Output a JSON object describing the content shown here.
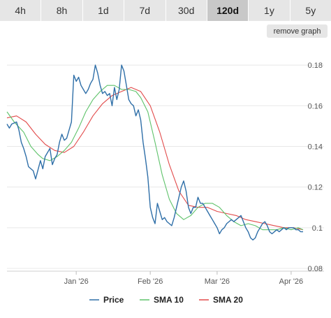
{
  "toolbar": {
    "tabs": [
      {
        "label": "4h"
      },
      {
        "label": "8h"
      },
      {
        "label": "1d"
      },
      {
        "label": "7d"
      },
      {
        "label": "30d"
      },
      {
        "label": "120d",
        "active": true
      },
      {
        "label": "1y"
      },
      {
        "label": "5y"
      }
    ],
    "remove_graph_label": "remove graph"
  },
  "colors": {
    "price": "#2f6fa8",
    "sma10": "#5ec26a",
    "sma20": "#e24a4a"
  },
  "chart_data": {
    "type": "line",
    "ylim": [
      0.08,
      0.19
    ],
    "yticks": [
      0.08,
      0.1,
      0.12,
      0.14,
      0.16,
      0.18
    ],
    "ytick_labels": [
      "0.08",
      "0.1",
      "0.12",
      "0.14",
      "0.16",
      "0.18"
    ],
    "xlim": [
      "2025-12-03",
      "2026-04-06"
    ],
    "xticks": [
      "2026-01-01",
      "2026-02-01",
      "2026-03-01",
      "2026-04-01"
    ],
    "xtick_labels": [
      "Jan '26",
      "Feb '26",
      "Mar '26",
      "Apr '26"
    ],
    "grid": true,
    "legend_position": "bottom",
    "series": [
      {
        "name": "Price",
        "x": [
          "2025-12-03",
          "2025-12-04",
          "2025-12-05",
          "2025-12-07",
          "2025-12-08",
          "2025-12-09",
          "2025-12-10",
          "2025-12-11",
          "2025-12-12",
          "2025-12-14",
          "2025-12-15",
          "2025-12-17",
          "2025-12-18",
          "2025-12-19",
          "2025-12-21",
          "2025-12-22",
          "2025-12-23",
          "2025-12-24",
          "2025-12-25",
          "2025-12-26",
          "2025-12-27",
          "2025-12-28",
          "2025-12-29",
          "2025-12-30",
          "2025-12-31",
          "2026-01-01",
          "2026-01-02",
          "2026-01-03",
          "2026-01-04",
          "2026-01-05",
          "2026-01-06",
          "2026-01-07",
          "2026-01-08",
          "2026-01-09",
          "2026-01-10",
          "2026-01-11",
          "2026-01-12",
          "2026-01-13",
          "2026-01-14",
          "2026-01-15",
          "2026-01-16",
          "2026-01-17",
          "2026-01-18",
          "2026-01-19",
          "2026-01-20",
          "2026-01-21",
          "2026-01-22",
          "2026-01-23",
          "2026-01-24",
          "2026-01-25",
          "2026-01-26",
          "2026-01-27",
          "2026-01-28",
          "2026-01-29",
          "2026-01-30",
          "2026-01-31",
          "2026-02-01",
          "2026-02-02",
          "2026-02-03",
          "2026-02-04",
          "2026-02-05",
          "2026-02-06",
          "2026-02-07",
          "2026-02-08",
          "2026-02-09",
          "2026-02-10",
          "2026-02-11",
          "2026-02-12",
          "2026-02-13",
          "2026-02-14",
          "2026-02-15",
          "2026-02-16",
          "2026-02-17",
          "2026-02-18",
          "2026-02-19",
          "2026-02-20",
          "2026-02-21",
          "2026-02-22",
          "2026-02-23",
          "2026-02-24",
          "2026-02-25",
          "2026-02-26",
          "2026-02-27",
          "2026-02-28",
          "2026-03-01",
          "2026-03-02",
          "2026-03-03",
          "2026-03-04",
          "2026-03-05",
          "2026-03-06",
          "2026-03-07",
          "2026-03-08",
          "2026-03-09",
          "2026-03-10",
          "2026-03-11",
          "2026-03-12",
          "2026-03-13",
          "2026-03-14",
          "2026-03-15",
          "2026-03-16",
          "2026-03-17",
          "2026-03-18",
          "2026-03-19",
          "2026-03-20",
          "2026-03-21",
          "2026-03-22",
          "2026-03-23",
          "2026-03-24",
          "2026-03-25",
          "2026-03-26",
          "2026-03-27",
          "2026-03-28",
          "2026-03-29",
          "2026-03-30",
          "2026-03-31",
          "2026-04-01",
          "2026-04-02",
          "2026-04-03",
          "2026-04-04",
          "2026-04-05",
          "2026-04-06"
        ],
        "values": [
          0.151,
          0.149,
          0.151,
          0.152,
          0.148,
          0.142,
          0.139,
          0.135,
          0.13,
          0.128,
          0.124,
          0.133,
          0.129,
          0.135,
          0.139,
          0.131,
          0.134,
          0.136,
          0.142,
          0.146,
          0.143,
          0.144,
          0.148,
          0.152,
          0.175,
          0.172,
          0.174,
          0.17,
          0.168,
          0.166,
          0.168,
          0.171,
          0.173,
          0.18,
          0.176,
          0.17,
          0.166,
          0.167,
          0.165,
          0.166,
          0.16,
          0.169,
          0.163,
          0.168,
          0.18,
          0.177,
          0.17,
          0.163,
          0.161,
          0.16,
          0.155,
          0.158,
          0.153,
          0.142,
          0.134,
          0.125,
          0.11,
          0.105,
          0.102,
          0.112,
          0.108,
          0.104,
          0.105,
          0.103,
          0.102,
          0.101,
          0.105,
          0.11,
          0.115,
          0.12,
          0.123,
          0.118,
          0.11,
          0.107,
          0.11,
          0.11,
          0.115,
          0.112,
          0.112,
          0.11,
          0.108,
          0.106,
          0.104,
          0.102,
          0.1,
          0.097,
          0.099,
          0.1,
          0.102,
          0.103,
          0.104,
          0.103,
          0.104,
          0.105,
          0.106,
          0.103,
          0.1,
          0.098,
          0.095,
          0.094,
          0.095,
          0.098,
          0.1,
          0.102,
          0.103,
          0.101,
          0.098,
          0.097,
          0.098,
          0.099,
          0.098,
          0.099,
          0.1,
          0.099,
          0.1,
          0.1,
          0.1,
          0.099,
          0.099,
          0.098,
          0.098
        ]
      },
      {
        "name": "SMA 10",
        "x": [
          "2025-12-03",
          "2025-12-06",
          "2025-12-10",
          "2025-12-13",
          "2025-12-16",
          "2025-12-18",
          "2025-12-21",
          "2025-12-24",
          "2025-12-27",
          "2025-12-30",
          "2026-01-02",
          "2026-01-05",
          "2026-01-08",
          "2026-01-11",
          "2026-01-14",
          "2026-01-17",
          "2026-01-20",
          "2026-01-23",
          "2026-01-26",
          "2026-01-28",
          "2026-01-31",
          "2026-02-03",
          "2026-02-06",
          "2026-02-09",
          "2026-02-12",
          "2026-02-15",
          "2026-02-18",
          "2026-02-21",
          "2026-02-24",
          "2026-02-27",
          "2026-03-02",
          "2026-03-05",
          "2026-03-08",
          "2026-03-11",
          "2026-03-14",
          "2026-03-17",
          "2026-03-20",
          "2026-03-23",
          "2026-03-26",
          "2026-03-29",
          "2026-04-01",
          "2026-04-04",
          "2026-04-06"
        ],
        "values": [
          0.157,
          0.152,
          0.147,
          0.14,
          0.136,
          0.134,
          0.133,
          0.135,
          0.138,
          0.142,
          0.149,
          0.157,
          0.163,
          0.167,
          0.17,
          0.17,
          0.168,
          0.168,
          0.167,
          0.164,
          0.157,
          0.142,
          0.126,
          0.114,
          0.107,
          0.104,
          0.106,
          0.11,
          0.112,
          0.112,
          0.11,
          0.106,
          0.103,
          0.101,
          0.102,
          0.101,
          0.099,
          0.099,
          0.099,
          0.1,
          0.099,
          0.1,
          0.099
        ]
      },
      {
        "name": "SMA 20",
        "x": [
          "2025-12-03",
          "2025-12-07",
          "2025-12-11",
          "2025-12-15",
          "2025-12-19",
          "2025-12-23",
          "2025-12-27",
          "2025-12-31",
          "2026-01-04",
          "2026-01-08",
          "2026-01-12",
          "2026-01-16",
          "2026-01-20",
          "2026-01-24",
          "2026-01-28",
          "2026-02-01",
          "2026-02-05",
          "2026-02-09",
          "2026-02-13",
          "2026-02-17",
          "2026-02-21",
          "2026-02-25",
          "2026-03-01",
          "2026-03-05",
          "2026-03-09",
          "2026-03-13",
          "2026-03-17",
          "2026-03-21",
          "2026-03-25",
          "2026-03-29",
          "2026-04-02",
          "2026-04-06"
        ],
        "values": [
          0.154,
          0.155,
          0.152,
          0.146,
          0.141,
          0.138,
          0.137,
          0.14,
          0.147,
          0.155,
          0.161,
          0.165,
          0.167,
          0.169,
          0.167,
          0.16,
          0.147,
          0.131,
          0.118,
          0.111,
          0.11,
          0.11,
          0.108,
          0.107,
          0.106,
          0.104,
          0.103,
          0.102,
          0.101,
          0.1,
          0.1,
          0.099
        ]
      }
    ]
  }
}
